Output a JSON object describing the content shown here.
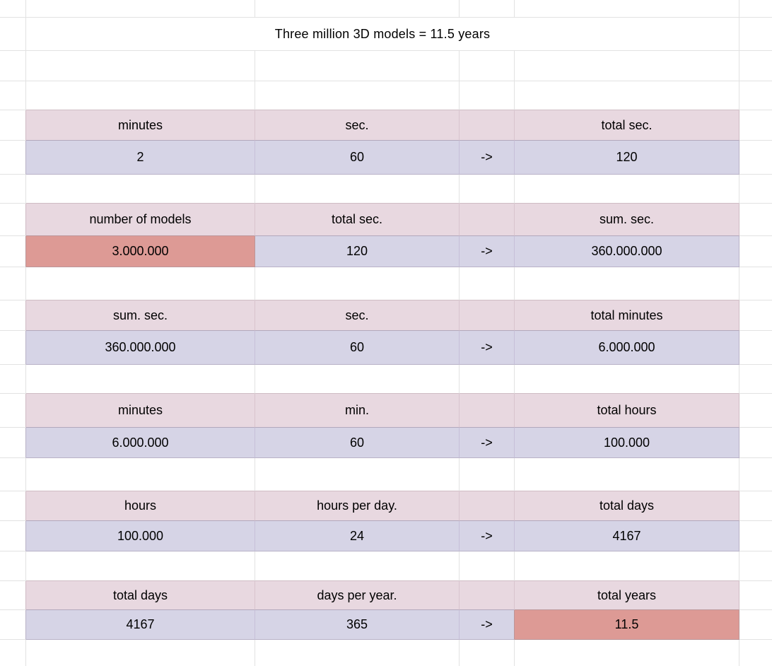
{
  "sheet": {
    "title": "Three million 3D models = 11.5 years",
    "colors": {
      "header_bg": "#e8d8e0",
      "value_bg": "#d6d4e6",
      "highlight_bg": "#dd9a95",
      "gridline": "#e2e2e2",
      "text": "#000000"
    },
    "blocks": [
      {
        "headers": [
          "minutes",
          "sec.",
          "",
          "total sec."
        ],
        "values": [
          "2",
          "60",
          "->",
          "120"
        ],
        "highlight_col": null
      },
      {
        "headers": [
          "number of models",
          "total sec.",
          "",
          "sum. sec."
        ],
        "values": [
          "3.000.000",
          "120",
          "->",
          "360.000.000"
        ],
        "highlight_col": 0
      },
      {
        "headers": [
          "sum. sec.",
          "sec.",
          "",
          "total minutes"
        ],
        "values": [
          "360.000.000",
          "60",
          "->",
          "6.000.000"
        ],
        "highlight_col": null
      },
      {
        "headers": [
          "minutes",
          "min.",
          "",
          "total hours"
        ],
        "values": [
          "6.000.000",
          "60",
          "->",
          "100.000"
        ],
        "highlight_col": null
      },
      {
        "headers": [
          "hours",
          "hours per day.",
          "",
          "total days"
        ],
        "values": [
          "100.000",
          "24",
          "->",
          "4167"
        ],
        "highlight_col": null
      },
      {
        "headers": [
          "total days",
          "days per year.",
          "",
          "total years"
        ],
        "values": [
          "4167",
          "365",
          "->",
          "11.5"
        ],
        "highlight_col": 3
      }
    ]
  }
}
